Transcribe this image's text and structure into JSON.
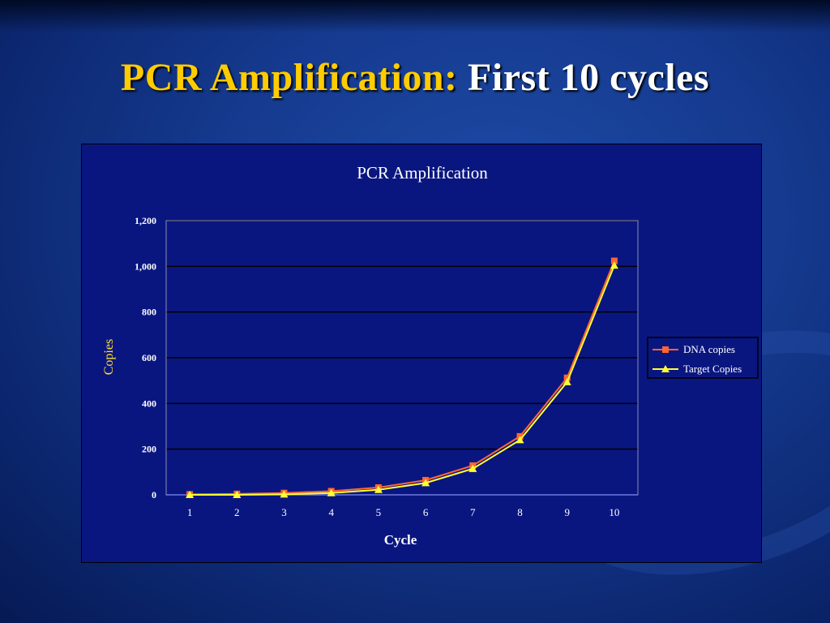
{
  "slide": {
    "title_part1": "PCR Amplification:",
    "title_part2": "First 10 cycles"
  },
  "colors": {
    "title_accent": "#ffcc00",
    "dna_series": "#ff6633",
    "target_series": "#ffff33",
    "plot_bg": "#0a1680",
    "background": "#153a8f"
  },
  "chart_data": {
    "type": "line",
    "title": "PCR Amplification",
    "xlabel": "Cycle",
    "ylabel": "Copies",
    "x": [
      1,
      2,
      3,
      4,
      5,
      6,
      7,
      8,
      9,
      10
    ],
    "x_tick_labels": [
      "1",
      "2",
      "3",
      "4",
      "5",
      "6",
      "7",
      "8",
      "9",
      "10"
    ],
    "y_tick_labels": [
      "0",
      "200",
      "400",
      "600",
      "800",
      "1,000",
      "1,200"
    ],
    "ylim": [
      0,
      1200
    ],
    "grid": true,
    "legend_position": "right",
    "series": [
      {
        "name": "DNA copies",
        "marker": "square",
        "color": "#ff6633",
        "values": [
          2,
          4,
          8,
          16,
          32,
          64,
          128,
          256,
          512,
          1024
        ]
      },
      {
        "name": "Target Copies",
        "marker": "triangle",
        "color": "#ffff33",
        "values": [
          0,
          0,
          2,
          8,
          22,
          52,
          114,
          240,
          494,
          1004
        ]
      }
    ]
  }
}
